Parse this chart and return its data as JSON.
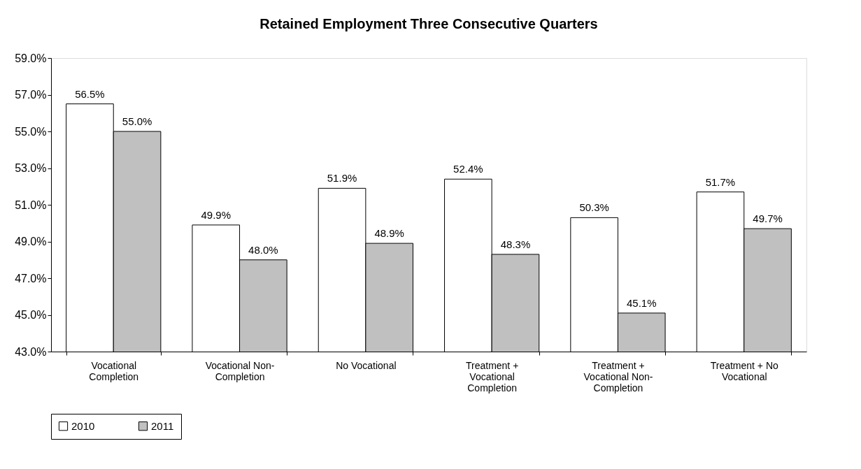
{
  "chart_data": {
    "type": "bar",
    "title": "Retained Employment Three Consecutive Quarters",
    "categories": [
      "Vocational Completion",
      "Vocational Non-Completion",
      "No Vocational",
      "Treatment + Vocational Completion",
      "Treatment + Vocational Non-Completion",
      "Treatment + No Vocational"
    ],
    "series": [
      {
        "name": "2010",
        "color": "#ffffff",
        "values": [
          56.5,
          49.9,
          51.9,
          52.4,
          50.3,
          51.7
        ],
        "value_labels": [
          "56.5%",
          "49.9%",
          "51.9%",
          "52.4%",
          "50.3%",
          "51.7%"
        ]
      },
      {
        "name": "2011",
        "color": "#c0c0c0",
        "values": [
          55.0,
          48.0,
          48.9,
          48.3,
          45.1,
          49.7
        ],
        "value_labels": [
          "55.0%",
          "48.0%",
          "48.9%",
          "48.3%",
          "45.1%",
          "49.7%"
        ]
      }
    ],
    "ylim": [
      43,
      59
    ],
    "yticks": [
      {
        "value": 43,
        "label": "43.0%"
      },
      {
        "value": 45,
        "label": "45.0%"
      },
      {
        "value": 47,
        "label": "47.0%"
      },
      {
        "value": 49,
        "label": "49.0%"
      },
      {
        "value": 51,
        "label": "51.0%"
      },
      {
        "value": 53,
        "label": "53.0%"
      },
      {
        "value": 55,
        "label": "55.0%"
      },
      {
        "value": 57,
        "label": "57.0%"
      },
      {
        "value": 59,
        "label": "59.0%"
      }
    ],
    "grid": false,
    "legend": "bottom"
  }
}
